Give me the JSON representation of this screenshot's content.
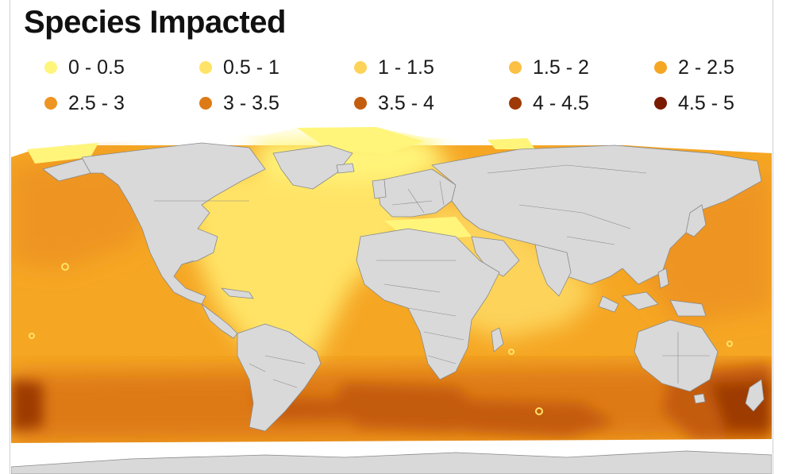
{
  "title": "Species Impacted",
  "legend": [
    {
      "label": "0 - 0.5",
      "color": "#FFF57A"
    },
    {
      "label": "0.5 - 1",
      "color": "#FFE366"
    },
    {
      "label": "1 - 1.5",
      "color": "#FDD35A"
    },
    {
      "label": "1.5 - 2",
      "color": "#FBC044"
    },
    {
      "label": "2 - 2.5",
      "color": "#F5A623"
    },
    {
      "label": "2.5 - 3",
      "color": "#EE9422"
    },
    {
      "label": "3 - 3.5",
      "color": "#DE7A15"
    },
    {
      "label": "3.5 - 4",
      "color": "#C45C0D"
    },
    {
      "label": "4 - 4.5",
      "color": "#9E3A06"
    },
    {
      "label": "4.5 - 5",
      "color": "#7A1A02"
    }
  ],
  "map": {
    "land_color": "#D9D9D9",
    "ice_color": "#FFFFFF",
    "border_color": "#8A8A8A"
  }
}
